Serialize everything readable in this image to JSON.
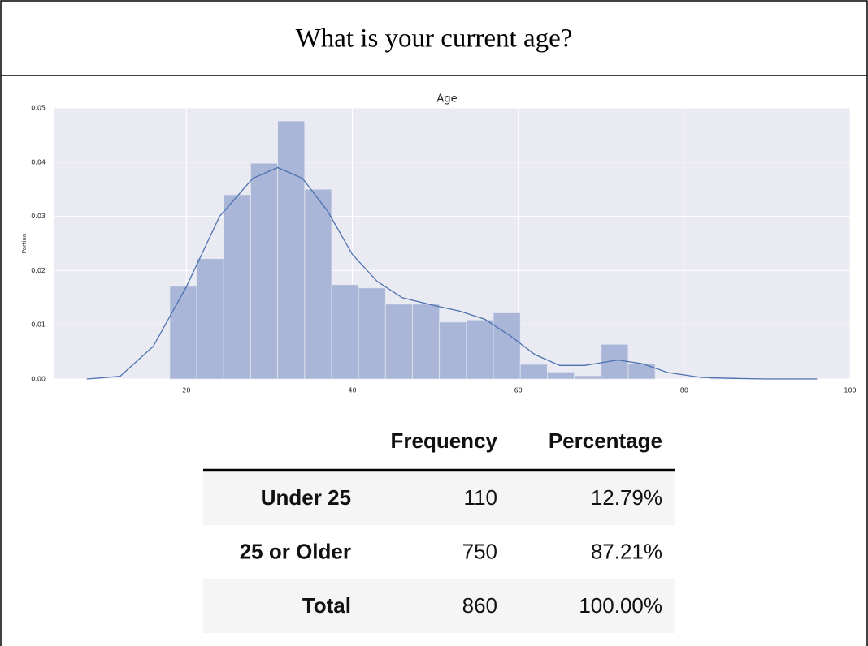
{
  "header": {
    "title": "What is your current age?"
  },
  "chart_data": {
    "type": "histogram",
    "title": "Age",
    "ylabel": "Portion",
    "bins": [
      18,
      21.25,
      24.5,
      27.75,
      31,
      34.25,
      37.5,
      40.75,
      44,
      47.25,
      50.5,
      53.75,
      57,
      60.25,
      63.5,
      66.75,
      70,
      73.25,
      76.5,
      79.75,
      83,
      86.25
    ],
    "counts": [
      0.0171,
      0.0222,
      0.034,
      0.0398,
      0.0476,
      0.035,
      0.0174,
      0.0168,
      0.0138,
      0.0138,
      0.0105,
      0.0109,
      0.0122,
      0.0027,
      0.0013,
      0.0006,
      0.0064,
      0.0028,
      0,
      0,
      0.0003
    ],
    "color": "#a9b6d7",
    "kde": {
      "color": "#4c72b0",
      "x": [
        8,
        12,
        16,
        20,
        24,
        28,
        31,
        34,
        37,
        40,
        43,
        46,
        50,
        53,
        56,
        59,
        62,
        65,
        68,
        72,
        75,
        78,
        82,
        86,
        90,
        96
      ],
      "values": [
        0,
        0.0005,
        0.006,
        0.017,
        0.03,
        0.037,
        0.039,
        0.037,
        0.031,
        0.023,
        0.018,
        0.015,
        0.0135,
        0.0125,
        0.011,
        0.008,
        0.0045,
        0.0025,
        0.0025,
        0.0035,
        0.0028,
        0.0012,
        0.0003,
        0.0001,
        0,
        0
      ]
    },
    "xlim": [
      4,
      100
    ],
    "ylim": [
      0,
      0.05
    ],
    "xticks": [
      20,
      40,
      60,
      80,
      100
    ],
    "yticks": [
      {
        "value": 0,
        "label": "0.00"
      },
      0.01,
      0.02,
      0.03,
      0.04,
      0.05
    ],
    "grid": true,
    "background": "#eaeaf2"
  },
  "table": {
    "columns": [
      "Frequency",
      "Percentage"
    ],
    "rows": [
      {
        "label": "Under 25",
        "cells": [
          "110",
          "12.79%"
        ]
      },
      {
        "label": "25 or Older",
        "cells": [
          "750",
          "87.21%"
        ]
      },
      {
        "label": "Total",
        "cells": [
          "860",
          "100.00%"
        ]
      }
    ]
  }
}
